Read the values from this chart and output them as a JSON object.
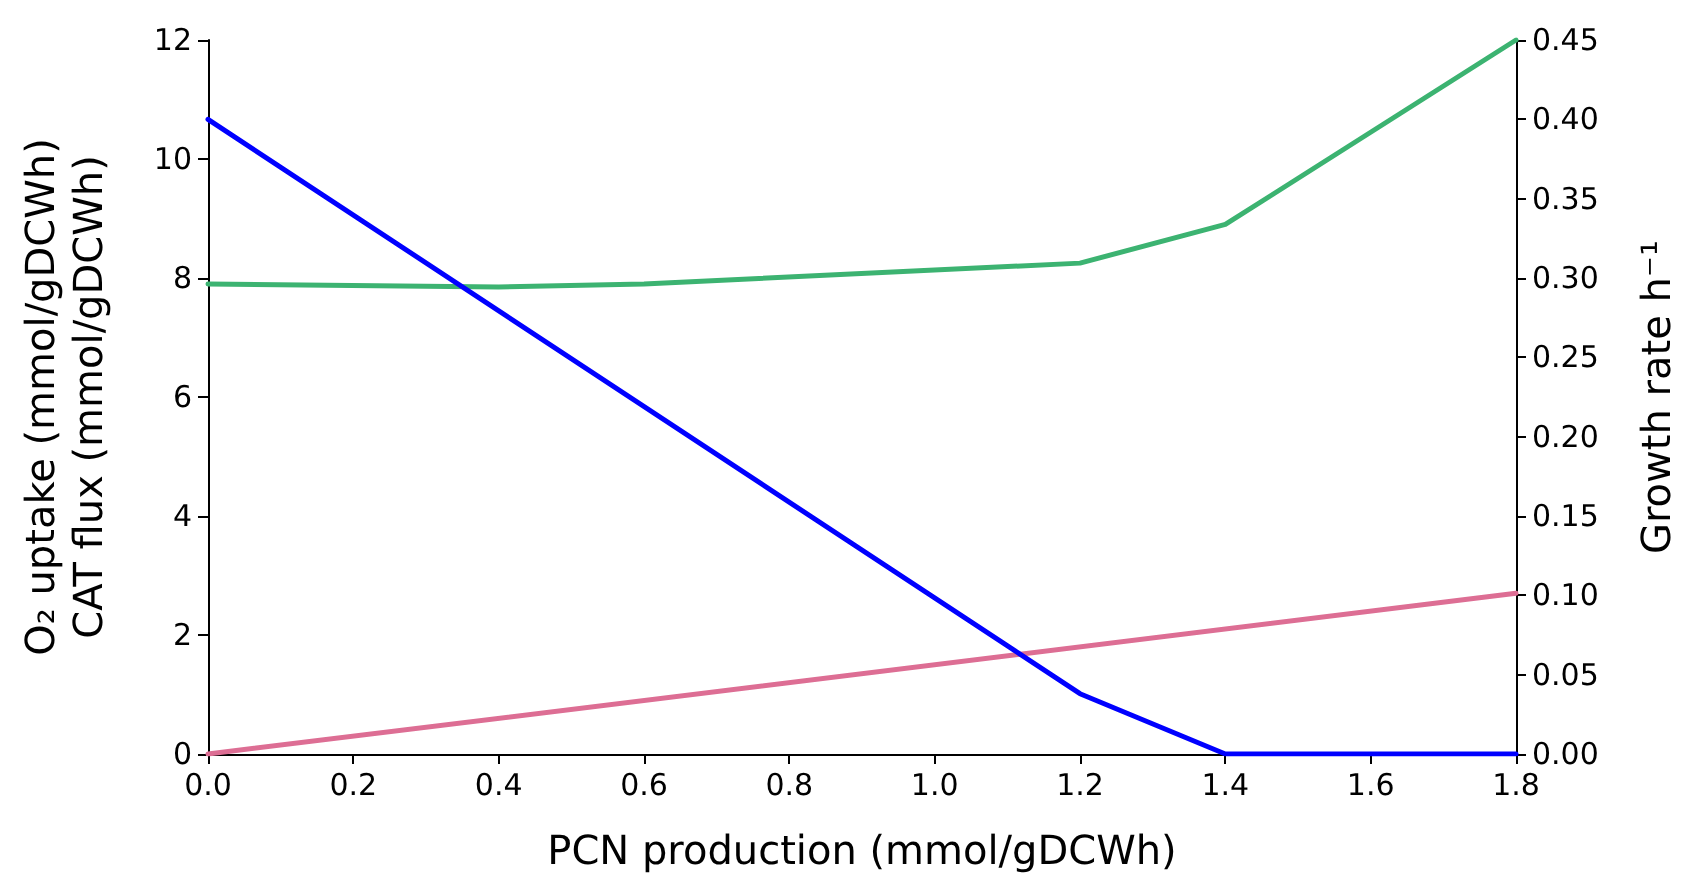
{
  "chart_data": {
    "type": "line",
    "xlabel": "PCN production (mmol/gDCWh)",
    "ylabel": "O₂ uptake (mmol/gDCWh)\nCAT flux (mmol/gDCWh)",
    "y2label": "Growth rate h⁻¹",
    "series": [
      {
        "color": "#3cb371",
        "x": [
          0,
          0.4,
          0.6,
          1.2,
          1.4,
          1.8
        ],
        "values": [
          7.9,
          7.85,
          7.9,
          8.25,
          8.9,
          12
        ]
      },
      {
        "color": "#dd6e94",
        "x": [
          0,
          1.8
        ],
        "values": [
          0,
          2.7
        ]
      },
      {
        "color": "#0000ff",
        "axis": "y2",
        "x": [
          0,
          1.2,
          1.4,
          1.8
        ],
        "values": [
          0.4,
          0.038,
          0,
          0
        ]
      }
    ],
    "xlim": [
      0,
      1.8
    ],
    "xticks": [
      {
        "value": 0,
        "label": "0.0"
      },
      {
        "value": 0.2,
        "label": "0.2"
      },
      {
        "value": 0.4,
        "label": "0.4"
      },
      {
        "value": 0.6,
        "label": "0.6"
      },
      {
        "value": 0.8,
        "label": "0.8"
      },
      {
        "value": 1,
        "label": "1.0"
      },
      {
        "value": 1.2,
        "label": "1.2"
      },
      {
        "value": 1.4,
        "label": "1.4"
      },
      {
        "value": 1.6,
        "label": "1.6"
      },
      {
        "value": 1.8,
        "label": "1.8"
      }
    ],
    "ylim": [
      0,
      12
    ],
    "yticks": [
      0,
      2,
      4,
      6,
      8,
      10,
      12
    ],
    "y2lim": [
      0,
      0.45
    ],
    "y2ticks": [
      {
        "value": 0,
        "label": "0.00"
      },
      {
        "value": 0.05,
        "label": "0.05"
      },
      {
        "value": 0.1,
        "label": "0.10"
      },
      {
        "value": 0.15,
        "label": "0.15"
      },
      {
        "value": 0.2,
        "label": "0.20"
      },
      {
        "value": 0.25,
        "label": "0.25"
      },
      {
        "value": 0.3,
        "label": "0.30"
      },
      {
        "value": 0.35,
        "label": "0.35"
      },
      {
        "value": 0.4,
        "label": "0.40"
      },
      {
        "value": 0.45,
        "label": "0.45"
      }
    ],
    "grid": false,
    "marker": "none",
    "line_style": "solid"
  }
}
